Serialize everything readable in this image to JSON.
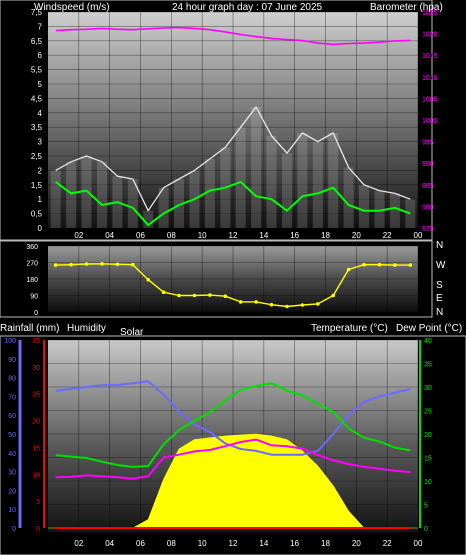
{
  "header": {
    "left": "Windspeed (m/s)",
    "center": "24 hour graph day : 07 June 2025",
    "right": "Barometer (hpa)"
  },
  "compass": [
    "N",
    "W",
    "S",
    "E",
    "N"
  ],
  "bottom_header": {
    "rainfall": "Rainfall (mm)",
    "humidity": "Humidity",
    "solar": "Solar",
    "temperature": "Temperature (°C)",
    "dewpoint": "Dew Point (°C)"
  },
  "colors": {
    "wind_avg": "#00ff00",
    "wind_gust": "#e8e8e8",
    "barometer": "#ff00ff",
    "direction": "#ffff00",
    "temperature": "#00e000",
    "dewpoint": "#ff00ff",
    "humidity": "#6a6aff",
    "solar": "#ffff00",
    "rain": "#ff0000"
  },
  "chart_data": [
    {
      "type": "line",
      "x_ticks": [
        "02",
        "04",
        "06",
        "08",
        "10",
        "12",
        "14",
        "16",
        "18",
        "20",
        "22",
        "00"
      ],
      "y_left_ticks": [
        "0",
        "0,5",
        "1",
        "1,5",
        "2",
        "2,5",
        "3",
        "3,5",
        "4",
        "4,5",
        "5",
        "5,5",
        "6",
        "6,5",
        "7",
        "7,5"
      ],
      "y_right_ticks": [
        "975",
        "980",
        "985",
        "990",
        "995",
        "1000",
        "1005",
        "1010",
        "1015",
        "1020",
        "1025"
      ],
      "ylim": [
        0,
        7.5
      ],
      "y2lim": [
        975,
        1025
      ],
      "series": [
        {
          "values": [
            1.6,
            1.2,
            1.3,
            0.8,
            0.9,
            0.7,
            0.1,
            0.5,
            0.8,
            1.0,
            1.3,
            1.4,
            1.6,
            1.1,
            1.0,
            0.6,
            1.1,
            1.2,
            1.4,
            0.8,
            0.6,
            0.6,
            0.7,
            0.5
          ]
        },
        {
          "values": [
            2.0,
            2.3,
            2.5,
            2.3,
            1.8,
            1.7,
            0.6,
            1.4,
            1.7,
            2.0,
            2.4,
            2.8,
            3.5,
            4.2,
            3.2,
            2.6,
            3.3,
            3.0,
            3.3,
            2.1,
            1.5,
            1.3,
            1.2,
            1.0
          ]
        },
        {
          "values": [
            1020.7,
            1020.9,
            1021.0,
            1021.2,
            1021.0,
            1020.9,
            1021.1,
            1021.3,
            1021.4,
            1021.2,
            1020.9,
            1020.4,
            1019.8,
            1019.3,
            1018.9,
            1018.6,
            1018.4,
            1017.8,
            1017.5,
            1017.7,
            1017.8,
            1018.0,
            1018.3,
            1018.4
          ]
        }
      ]
    },
    {
      "type": "scatter",
      "y_ticks": [
        "360",
        "270",
        "180",
        "90",
        "0"
      ],
      "ylim": [
        0,
        360
      ],
      "values": [
        256,
        258,
        262,
        263,
        260,
        258,
        176,
        108,
        90,
        90,
        92,
        86,
        55,
        55,
        40,
        30,
        38,
        44,
        90,
        232,
        258,
        258,
        256,
        256
      ]
    },
    {
      "type": "area",
      "humidity_ticks": [
        "100",
        "90",
        "80",
        "70",
        "60",
        "50",
        "40",
        "30",
        "20",
        "10",
        "0"
      ],
      "rain_ticks": [
        "35",
        "30",
        "25",
        "20",
        "15",
        "10",
        "5",
        "0"
      ],
      "temp_ticks": [
        "40",
        "35",
        "30",
        "25",
        "20",
        "15",
        "10",
        "5",
        "0"
      ],
      "series": [
        {
          "values": [
            15.5,
            15.2,
            14.9,
            14.1,
            13.4,
            13.0,
            13.2,
            17.8,
            20.8,
            22.8,
            24.6,
            27.2,
            29.4,
            30.2,
            30.8,
            29.2,
            28.2,
            26.4,
            24.7,
            21.2,
            19.2,
            18.4,
            17.1,
            16.5
          ]
        },
        {
          "values": [
            10.8,
            10.9,
            11.2,
            11.0,
            10.8,
            10.5,
            11.0,
            15.0,
            15.6,
            16.3,
            16.6,
            17.4,
            18.3,
            18.8,
            17.6,
            17.4,
            16.9,
            15.5,
            14.4,
            13.6,
            13.0,
            12.6,
            12.2,
            11.9
          ]
        },
        {
          "values": [
            73,
            74,
            75,
            76,
            76,
            77,
            78,
            71,
            62,
            55,
            51,
            45,
            42,
            41,
            39,
            39,
            39,
            41,
            50,
            60,
            67,
            70,
            72,
            74
          ]
        },
        {
          "values": [
            0,
            0,
            0,
            0,
            0,
            0,
            45,
            260,
            420,
            470,
            480,
            490,
            495,
            500,
            490,
            470,
            410,
            330,
            225,
            90,
            0,
            0,
            0,
            0
          ]
        },
        {
          "values": [
            0,
            0,
            0,
            0,
            0,
            0,
            0,
            0,
            0,
            0,
            0,
            0,
            0,
            0,
            0,
            0,
            0,
            0,
            0,
            0,
            0,
            0,
            0,
            0
          ]
        }
      ]
    }
  ]
}
